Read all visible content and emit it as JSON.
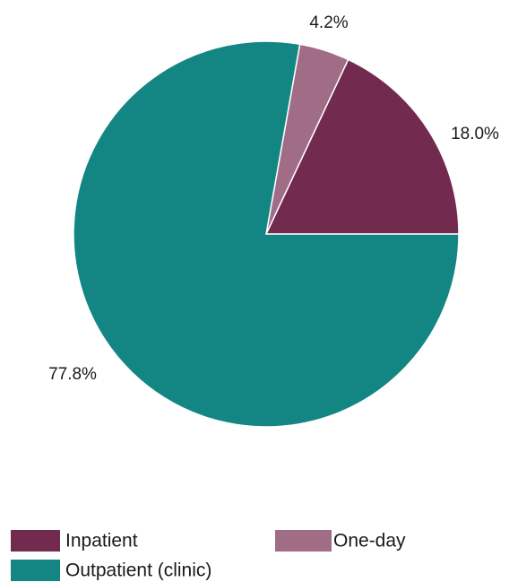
{
  "chart_data": {
    "type": "pie",
    "series": [
      {
        "values": [
          18.0,
          4.2,
          77.8
        ]
      }
    ],
    "categories": [
      "Inpatient",
      "One-day",
      "Outpatient (clinic)"
    ],
    "data_labels": [
      "18.0%",
      "4.2%",
      "77.8%"
    ],
    "colors": [
      "#722a4f",
      "#a06c86",
      "#138684"
    ],
    "start": "3 o'clock",
    "direction": "counterclockwise",
    "legend_position": "bottom"
  }
}
